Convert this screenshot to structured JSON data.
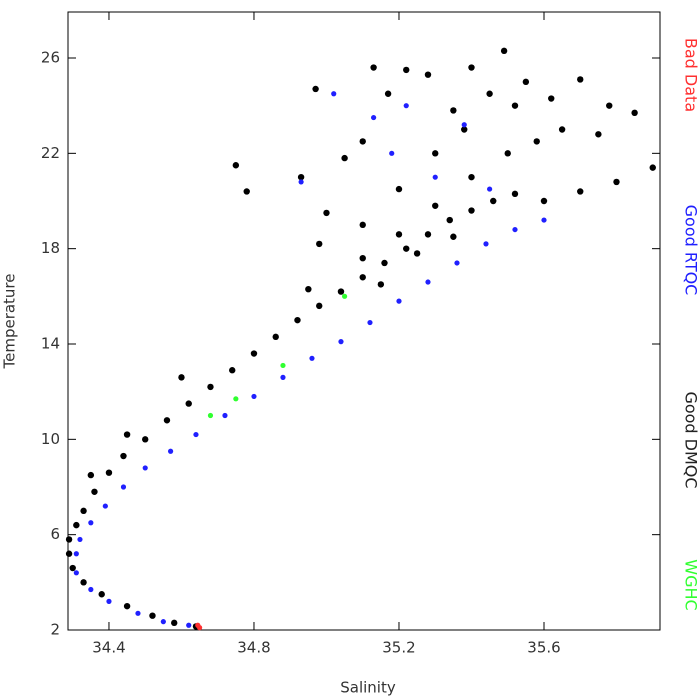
{
  "chart_data": {
    "type": "scatter",
    "xlabel": "Salinity",
    "ylabel": "Temperature",
    "xlim": [
      34.287,
      35.92
    ],
    "ylim": [
      2,
      27.93
    ],
    "xticks": [
      34.4,
      34.8,
      35.2,
      35.6
    ],
    "yticks": [
      2,
      6,
      10,
      14,
      18,
      22,
      26
    ],
    "series": [
      {
        "name": "Good DMQC",
        "color": "#000000",
        "x": [
          34.64,
          34.58,
          34.52,
          34.45,
          34.38,
          34.33,
          34.3,
          34.29,
          34.29,
          34.31,
          34.33,
          34.36,
          34.4,
          34.44,
          34.5,
          34.56,
          34.62,
          34.68,
          34.74,
          34.8,
          34.86,
          34.92,
          34.98,
          35.04,
          35.1,
          35.16,
          35.22,
          35.28,
          35.34,
          35.4,
          35.46,
          35.52,
          35.6,
          35.7,
          35.8,
          35.9,
          35.1,
          35.2,
          35.3,
          35.4,
          35.5,
          35.15,
          35.25,
          35.35,
          34.75,
          34.78,
          34.93,
          34.97,
          35.05,
          35.1,
          35.13,
          35.17,
          35.22,
          35.28,
          35.35,
          35.4,
          35.45,
          35.49,
          35.55,
          35.62,
          35.7,
          35.78,
          35.85,
          35.58,
          35.65,
          35.75,
          35.3,
          35.2,
          35.0,
          34.98,
          35.1,
          35.38,
          35.52,
          34.6,
          34.45,
          34.35,
          34.95
        ],
        "y": [
          2.15,
          2.3,
          2.6,
          3.0,
          3.5,
          4.0,
          4.6,
          5.2,
          5.8,
          6.4,
          7.0,
          7.8,
          8.6,
          9.3,
          10.0,
          10.8,
          11.5,
          12.2,
          12.9,
          13.6,
          14.3,
          15.0,
          15.6,
          16.2,
          16.8,
          17.4,
          18.0,
          18.6,
          19.2,
          19.6,
          20.0,
          20.3,
          20.0,
          20.4,
          20.8,
          21.4,
          17.6,
          18.6,
          19.8,
          21.0,
          22.0,
          16.5,
          17.8,
          18.5,
          21.5,
          20.4,
          21.0,
          24.7,
          21.8,
          22.5,
          25.6,
          24.5,
          25.5,
          25.3,
          23.8,
          25.6,
          24.5,
          26.3,
          25.0,
          24.3,
          25.1,
          24.0,
          23.7,
          22.5,
          23.0,
          22.8,
          22.0,
          20.5,
          19.5,
          18.2,
          19.0,
          23.0,
          24.0,
          12.6,
          10.2,
          8.5,
          16.3
        ]
      },
      {
        "name": "Good RTQC",
        "color": "#2020ff",
        "x": [
          34.62,
          34.55,
          34.48,
          34.4,
          34.35,
          34.31,
          34.31,
          34.32,
          34.35,
          34.39,
          34.44,
          34.5,
          34.57,
          34.64,
          34.72,
          34.8,
          34.88,
          34.96,
          35.04,
          35.12,
          35.2,
          35.28,
          35.36,
          35.44,
          35.52,
          35.6,
          35.02,
          35.13,
          35.18,
          34.93,
          35.3,
          35.45,
          35.22,
          35.38
        ],
        "y": [
          2.2,
          2.35,
          2.7,
          3.2,
          3.7,
          4.4,
          5.2,
          5.8,
          6.5,
          7.2,
          8.0,
          8.8,
          9.5,
          10.2,
          11.0,
          11.8,
          12.6,
          13.4,
          14.1,
          14.9,
          15.8,
          16.6,
          17.4,
          18.2,
          18.8,
          19.2,
          24.5,
          23.5,
          22.0,
          20.8,
          21.0,
          20.5,
          24.0,
          23.2
        ]
      },
      {
        "name": "Bad Data",
        "color": "#ff3030",
        "x": [
          34.65,
          34.645
        ],
        "y": [
          2.1,
          2.2
        ]
      },
      {
        "name": "WGHC",
        "color": "#30ff30",
        "x": [
          34.68,
          34.75,
          34.88,
          35.05
        ],
        "y": [
          11.0,
          11.7,
          13.1,
          16.0
        ]
      }
    ]
  }
}
